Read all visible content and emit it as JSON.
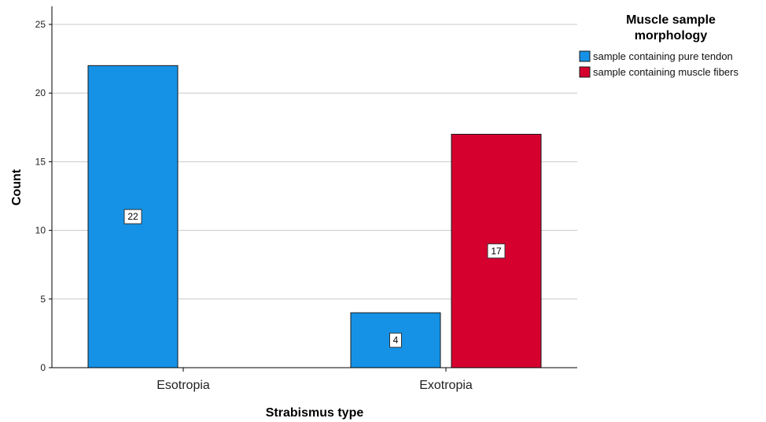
{
  "chart_data": {
    "type": "bar",
    "categories": [
      "Esotropia",
      "Exotropia"
    ],
    "series": [
      {
        "name": "sample containing pure tendon",
        "values": [
          22,
          4
        ],
        "color": "#1592E6"
      },
      {
        "name": "sample containing muscle fibers",
        "values": [
          null,
          17
        ],
        "color": "#D6002F"
      }
    ],
    "xlabel": "Strabismus type",
    "ylabel": "Count",
    "ylim": [
      0,
      25
    ],
    "yticks": [
      0,
      5,
      10,
      15,
      20,
      25
    ],
    "grid": true,
    "legend": {
      "title_lines": [
        "Muscle sample",
        "morphology"
      ],
      "placement": "top-right"
    },
    "data_labels": true
  }
}
